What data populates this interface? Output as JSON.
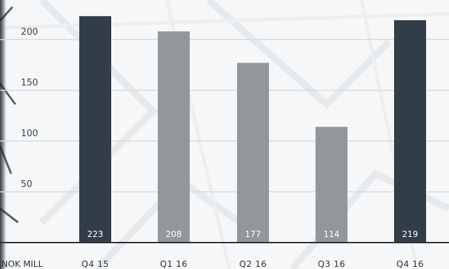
{
  "chart_data": {
    "type": "bar",
    "categories": [
      "Q4 15",
      "Q1 16",
      "Q2 16",
      "Q3 16",
      "Q4 16"
    ],
    "values": [
      223,
      208,
      177,
      114,
      219
    ],
    "data_labels": [
      "223",
      "208",
      "177",
      "114",
      "219"
    ],
    "highlighted": [
      true,
      false,
      false,
      false,
      true
    ],
    "unit_label": "NOK MILL",
    "ylim": [
      0,
      230
    ],
    "yticks": [
      50,
      100,
      150,
      200
    ],
    "grid": true,
    "colors": {
      "highlight": "#333d47",
      "normal": "#92979c",
      "grid": "#d7dadd",
      "axis": "#2b3137"
    }
  }
}
